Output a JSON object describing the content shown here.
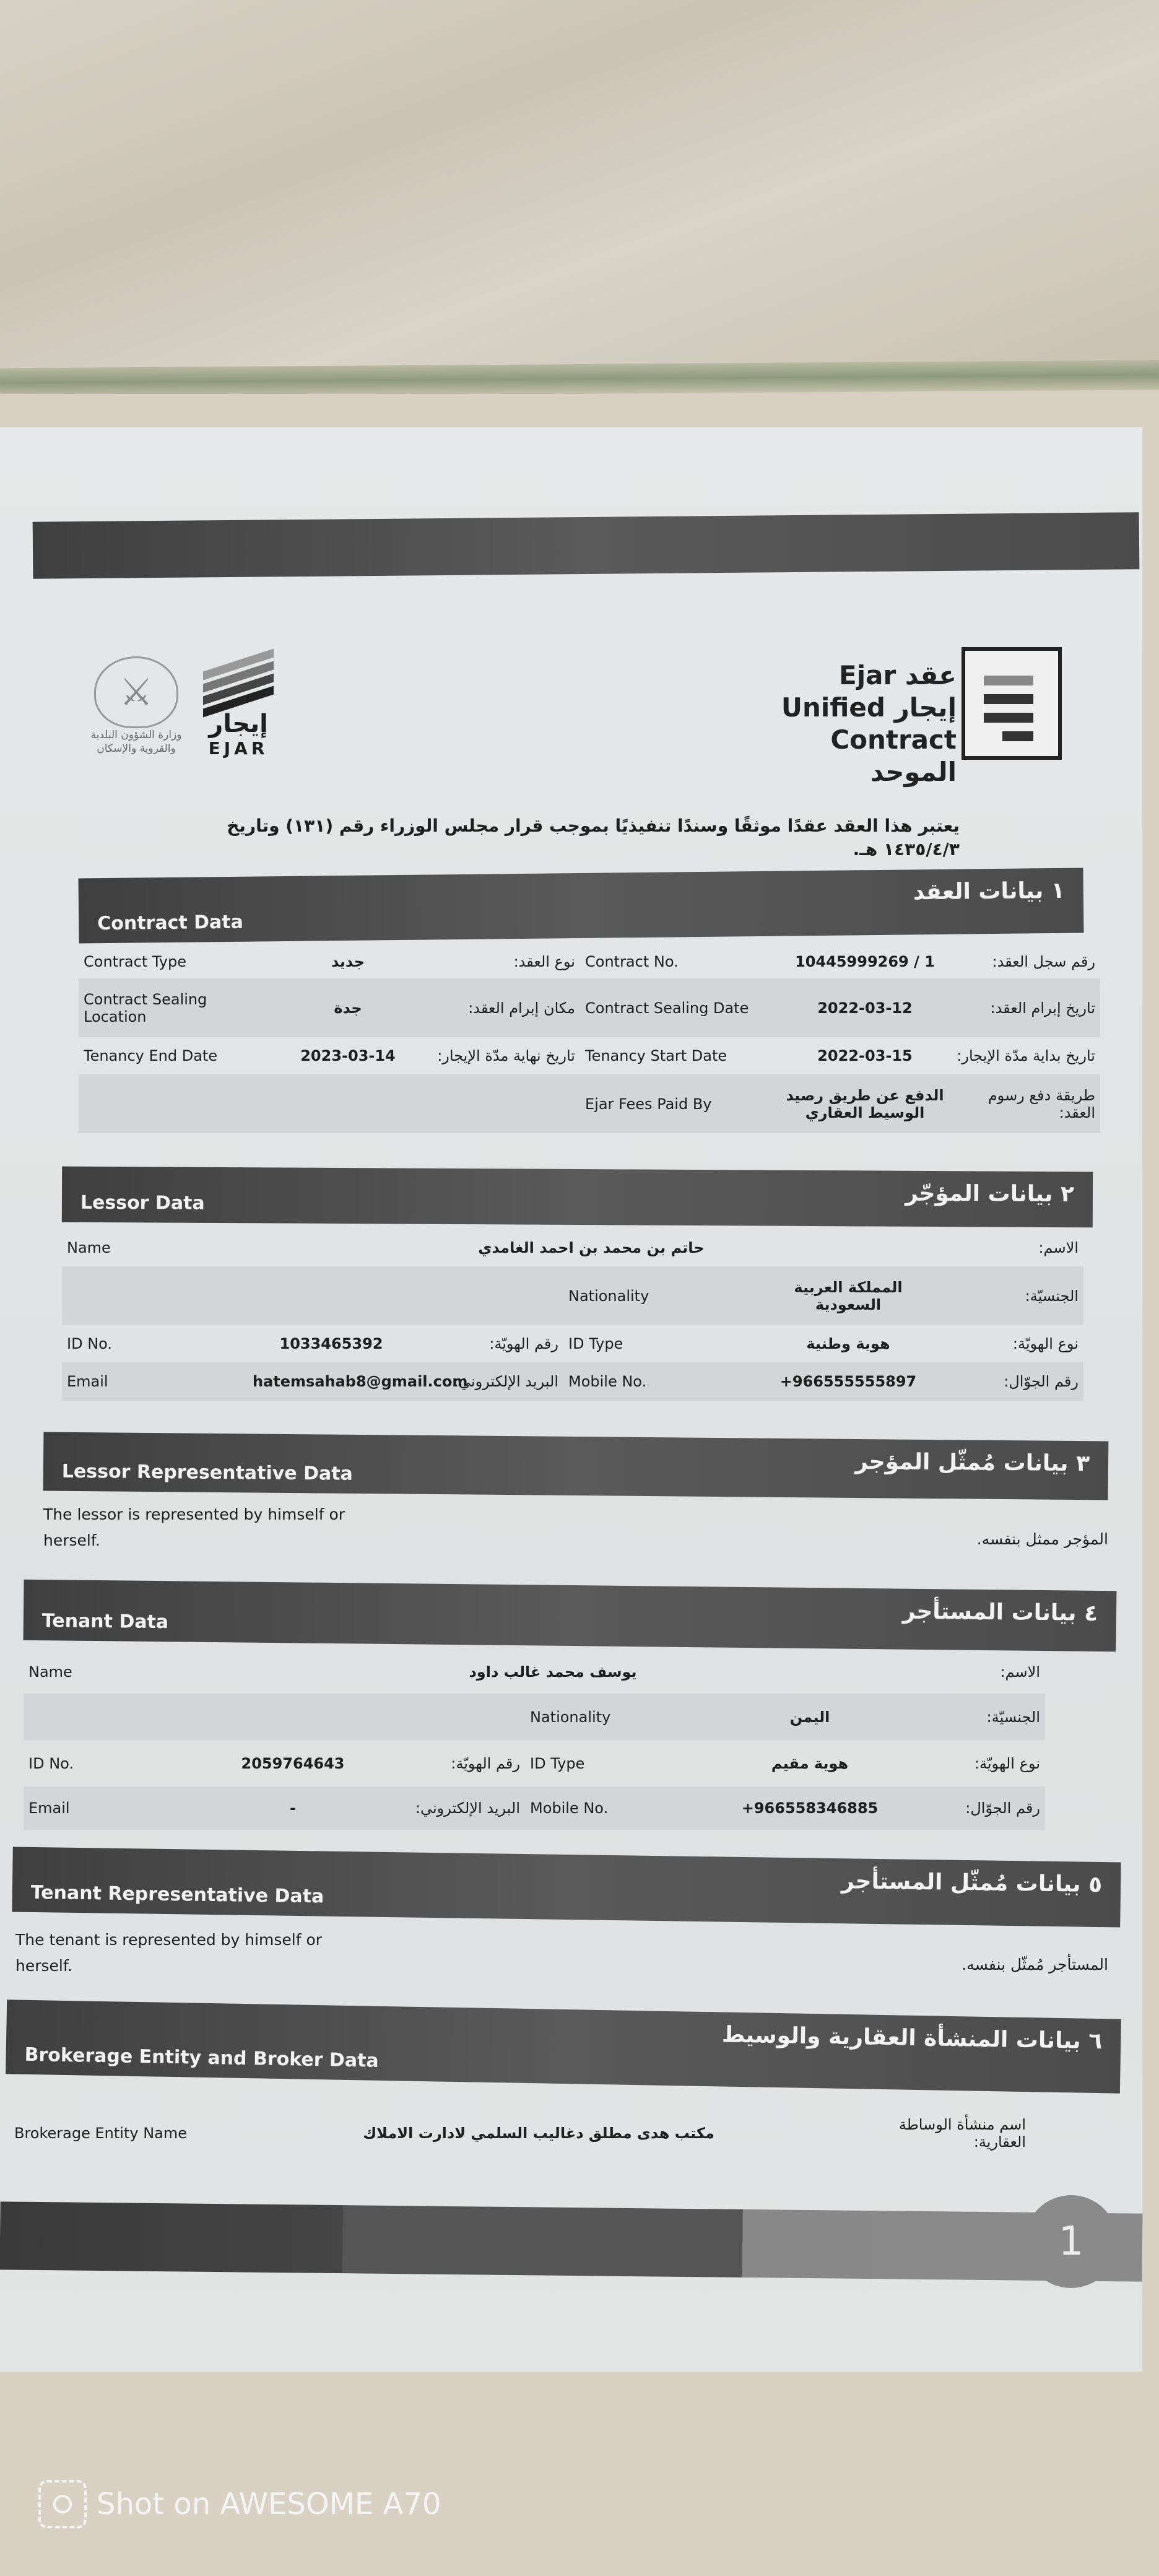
{
  "header": {
    "logo_title_line1": "Ejar عقد",
    "logo_title_line2": "Unified إيجار",
    "logo_title_line3": "Contract الموحد",
    "ejar_ar": "إيجار",
    "ejar_en": "EJAR",
    "ministry_name": "وزارة الشؤون البلدية والقروية والإسكان",
    "statement": "يعتبر هذا العقد عقدًا موثقًا وسندًا تنفيذيًا بموجب قرار مجلس الوزراء رقم (١٣١) وتاريخ ١٤٣٥/٤/٣ هـ."
  },
  "sections": [
    {
      "title_en": "Contract Data",
      "title_ar": "١ بيانات العقد",
      "rows": [
        {
          "left": {
            "en": "Contract Type",
            "value": "جديد",
            "ar": "نوع العقد:"
          },
          "right": {
            "en": "Contract No.",
            "value": "10445999269 / 1",
            "ar": "رقم سجل العقد:"
          }
        },
        {
          "left": {
            "en": "Contract Sealing Location",
            "value": "جدة",
            "ar": "مكان إبرام العقد:"
          },
          "right": {
            "en": "Contract Sealing Date",
            "value": "2022-03-12",
            "ar": "تاريخ إبرام العقد:"
          }
        },
        {
          "left": {
            "en": "Tenancy End Date",
            "value": "2023-03-14",
            "ar": "تاريخ نهاية مدّة الإيجار:"
          },
          "right": {
            "en": "Tenancy Start Date",
            "value": "2022-03-15",
            "ar": "تاريخ بداية مدّة الإيجار:"
          }
        },
        {
          "left": {
            "en": "",
            "value": "",
            "ar": ""
          },
          "right": {
            "en": "Ejar Fees Paid By",
            "value": "الدفع عن طريق رصيد الوسيط العقاري",
            "ar": "طريقة دفع رسوم العقد:"
          }
        }
      ]
    },
    {
      "title_en": "Lessor Data",
      "title_ar": "٢ بيانات المؤجّر",
      "rows": [
        {
          "full": {
            "en": "Name",
            "value": "حاتم بن محمد بن احمد الغامدي",
            "ar": "الاسم:"
          }
        },
        {
          "left": {
            "en": "",
            "value": "",
            "ar": ""
          },
          "right": {
            "en": "Nationality",
            "value": "المملكة العربية السعودية",
            "ar": "الجنسيّة:"
          }
        },
        {
          "left": {
            "en": "ID No.",
            "value": "1033465392",
            "ar": "رقم الهويّة:"
          },
          "right": {
            "en": "ID Type",
            "value": "هوية وطنية",
            "ar": "نوع الهويّة:"
          }
        },
        {
          "left": {
            "en": "Email",
            "value": "hatemsahab8@gmail.com",
            "ar": "البريد الإلكتروني:"
          },
          "right": {
            "en": "Mobile No.",
            "value": "+966555555897",
            "ar": "رقم الجوّال:"
          }
        }
      ]
    },
    {
      "title_en": "Lessor Representative Data",
      "title_ar": "٣ بيانات مُمثّل المؤجر",
      "text_en": "The lessor is represented by himself or herself.",
      "text_ar": "المؤجر ممثل بنفسه."
    },
    {
      "title_en": "Tenant Data",
      "title_ar": "٤ بيانات المستأجر",
      "rows": [
        {
          "full": {
            "en": "Name",
            "value": "يوسف محمد غالب داود",
            "ar": "الاسم:"
          }
        },
        {
          "left": {
            "en": "",
            "value": "",
            "ar": ""
          },
          "right": {
            "en": "Nationality",
            "value": "اليمن",
            "ar": "الجنسيّة:"
          }
        },
        {
          "left": {
            "en": "ID No.",
            "value": "2059764643",
            "ar": "رقم الهويّة:"
          },
          "right": {
            "en": "ID Type",
            "value": "هوية مقيم",
            "ar": "نوع الهويّة:"
          }
        },
        {
          "left": {
            "en": "Email",
            "value": "-",
            "ar": "البريد الإلكتروني:"
          },
          "right": {
            "en": "Mobile No.",
            "value": "+966558346885",
            "ar": "رقم الجوّال:"
          }
        }
      ]
    },
    {
      "title_en": "Tenant Representative Data",
      "title_ar": "٥ بيانات مُمثّل المستأجر",
      "text_en": "The tenant is represented by himself or herself.",
      "text_ar": "المستأجر مُمثّل بنفسه."
    },
    {
      "title_en": "Brokerage Entity and Broker Data",
      "title_ar": "٦ بيانات المنشأة العقارية والوسيط",
      "rows": [
        {
          "full": {
            "en": "Brokerage Entity Name",
            "value": "مكتب هدى مطلق دغاليب السلمي لادارت الاملاك",
            "ar": "اسم منشأة الوساطة العقارية:"
          }
        }
      ]
    }
  ],
  "footer": {
    "page_number": "1"
  },
  "watermark": {
    "text": "Shot on AWESOME A70"
  }
}
